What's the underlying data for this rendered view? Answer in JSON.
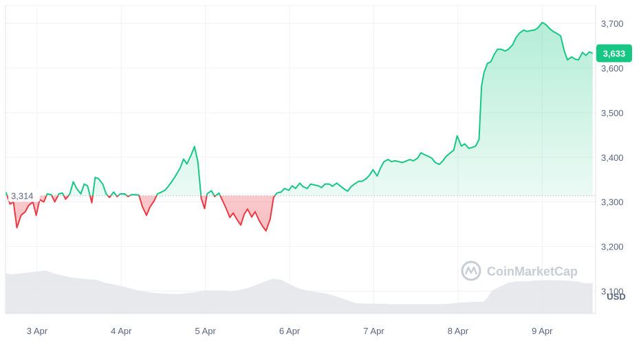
{
  "chart_data": {
    "type": "area",
    "currency_label": "USD",
    "watermark": "CoinMarketCap",
    "baseline": {
      "value": 3314,
      "label": "3,314"
    },
    "current": {
      "value": 3633,
      "label": "3,633"
    },
    "ylim": [
      3050,
      3740
    ],
    "yticks": [
      {
        "value": 3700,
        "label": "3,700"
      },
      {
        "value": 3600,
        "label": "3,600"
      },
      {
        "value": 3500,
        "label": "3,500"
      },
      {
        "value": 3400,
        "label": "3,400"
      },
      {
        "value": 3300,
        "label": "3,300"
      },
      {
        "value": 3200,
        "label": "3,200"
      },
      {
        "value": 3100,
        "label": "3,100"
      }
    ],
    "xlim": [
      2.625,
      9.635
    ],
    "xticks": [
      {
        "value": 3,
        "label": "3 Apr"
      },
      {
        "value": 4,
        "label": "4 Apr"
      },
      {
        "value": 5,
        "label": "5 Apr"
      },
      {
        "value": 6,
        "label": "6 Apr"
      },
      {
        "value": 7,
        "label": "7 Apr"
      },
      {
        "value": 8,
        "label": "8 Apr"
      },
      {
        "value": 9,
        "label": "9 Apr"
      }
    ],
    "x_unit": "day of April",
    "grid": true,
    "colors": {
      "up_line": "#16c784",
      "down_line": "#ea3943",
      "up_fill": "#16c784",
      "down_fill": "#ea3943",
      "volume": "#e3e5e9",
      "current_badge": "#16c784",
      "grid": "#eff2f5",
      "axis_text": "#58667e"
    },
    "series": [
      {
        "values": [
          [
            2.63,
            3322
          ],
          [
            2.68,
            3295
          ],
          [
            2.72,
            3300
          ],
          [
            2.76,
            3242
          ],
          [
            2.81,
            3270
          ],
          [
            2.86,
            3278
          ],
          [
            2.9,
            3292
          ],
          [
            2.95,
            3300
          ],
          [
            2.99,
            3270
          ],
          [
            3.03,
            3305
          ],
          [
            3.08,
            3300
          ],
          [
            3.12,
            3318
          ],
          [
            3.17,
            3316
          ],
          [
            3.21,
            3300
          ],
          [
            3.26,
            3318
          ],
          [
            3.3,
            3320
          ],
          [
            3.34,
            3306
          ],
          [
            3.39,
            3318
          ],
          [
            3.43,
            3345
          ],
          [
            3.47,
            3330
          ],
          [
            3.52,
            3318
          ],
          [
            3.56,
            3340
          ],
          [
            3.6,
            3336
          ],
          [
            3.65,
            3298
          ],
          [
            3.69,
            3355
          ],
          [
            3.73,
            3352
          ],
          [
            3.78,
            3340
          ],
          [
            3.82,
            3318
          ],
          [
            3.86,
            3310
          ],
          [
            3.91,
            3322
          ],
          [
            3.95,
            3312
          ],
          [
            3.99,
            3318
          ],
          [
            4.04,
            3318
          ],
          [
            4.08,
            3312
          ],
          [
            4.12,
            3316
          ],
          [
            4.17,
            3316
          ],
          [
            4.21,
            3315
          ],
          [
            4.25,
            3290
          ],
          [
            4.3,
            3270
          ],
          [
            4.34,
            3288
          ],
          [
            4.39,
            3302
          ],
          [
            4.43,
            3318
          ],
          [
            4.48,
            3322
          ],
          [
            4.52,
            3326
          ],
          [
            4.56,
            3335
          ],
          [
            4.61,
            3348
          ],
          [
            4.65,
            3360
          ],
          [
            4.7,
            3376
          ],
          [
            4.74,
            3396
          ],
          [
            4.78,
            3385
          ],
          [
            4.83,
            3405
          ],
          [
            4.87,
            3424
          ],
          [
            4.91,
            3390
          ],
          [
            4.95,
            3308
          ],
          [
            4.99,
            3285
          ],
          [
            5.02,
            3318
          ],
          [
            5.07,
            3325
          ],
          [
            5.11,
            3312
          ],
          [
            5.16,
            3320
          ],
          [
            5.2,
            3304
          ],
          [
            5.24,
            3288
          ],
          [
            5.29,
            3265
          ],
          [
            5.33,
            3275
          ],
          [
            5.37,
            3262
          ],
          [
            5.42,
            3248
          ],
          [
            5.46,
            3272
          ],
          [
            5.5,
            3284
          ],
          [
            5.55,
            3266
          ],
          [
            5.59,
            3278
          ],
          [
            5.64,
            3258
          ],
          [
            5.68,
            3245
          ],
          [
            5.72,
            3235
          ],
          [
            5.77,
            3262
          ],
          [
            5.81,
            3310
          ],
          [
            5.85,
            3320
          ],
          [
            5.9,
            3322
          ],
          [
            5.94,
            3330
          ],
          [
            5.99,
            3326
          ],
          [
            6.03,
            3336
          ],
          [
            6.07,
            3330
          ],
          [
            6.12,
            3342
          ],
          [
            6.16,
            3334
          ],
          [
            6.21,
            3330
          ],
          [
            6.25,
            3340
          ],
          [
            6.29,
            3338
          ],
          [
            6.34,
            3336
          ],
          [
            6.38,
            3332
          ],
          [
            6.42,
            3340
          ],
          [
            6.47,
            3340
          ],
          [
            6.51,
            3335
          ],
          [
            6.56,
            3342
          ],
          [
            6.6,
            3336
          ],
          [
            6.64,
            3330
          ],
          [
            6.69,
            3324
          ],
          [
            6.73,
            3334
          ],
          [
            6.77,
            3340
          ],
          [
            6.82,
            3346
          ],
          [
            6.86,
            3346
          ],
          [
            6.91,
            3352
          ],
          [
            6.95,
            3360
          ],
          [
            6.99,
            3372
          ],
          [
            7.04,
            3358
          ],
          [
            7.08,
            3376
          ],
          [
            7.12,
            3390
          ],
          [
            7.17,
            3395
          ],
          [
            7.21,
            3390
          ],
          [
            7.25,
            3392
          ],
          [
            7.3,
            3390
          ],
          [
            7.34,
            3388
          ],
          [
            7.39,
            3392
          ],
          [
            7.43,
            3395
          ],
          [
            7.47,
            3392
          ],
          [
            7.52,
            3398
          ],
          [
            7.56,
            3410
          ],
          [
            7.6,
            3406
          ],
          [
            7.65,
            3402
          ],
          [
            7.69,
            3398
          ],
          [
            7.73,
            3388
          ],
          [
            7.78,
            3384
          ],
          [
            7.82,
            3392
          ],
          [
            7.86,
            3402
          ],
          [
            7.91,
            3410
          ],
          [
            7.95,
            3416
          ],
          [
            7.99,
            3448
          ],
          [
            8.04,
            3425
          ],
          [
            8.08,
            3430
          ],
          [
            8.13,
            3420
          ],
          [
            8.17,
            3422
          ],
          [
            8.21,
            3425
          ],
          [
            8.25,
            3440
          ],
          [
            8.28,
            3560
          ],
          [
            8.31,
            3590
          ],
          [
            8.35,
            3610
          ],
          [
            8.39,
            3614
          ],
          [
            8.43,
            3630
          ],
          [
            8.47,
            3642
          ],
          [
            8.51,
            3642
          ],
          [
            8.56,
            3638
          ],
          [
            8.6,
            3642
          ],
          [
            8.65,
            3652
          ],
          [
            8.69,
            3668
          ],
          [
            8.73,
            3678
          ],
          [
            8.78,
            3685
          ],
          [
            8.82,
            3682
          ],
          [
            8.87,
            3684
          ],
          [
            8.91,
            3685
          ],
          [
            8.95,
            3690
          ],
          [
            9.0,
            3702
          ],
          [
            9.04,
            3698
          ],
          [
            9.09,
            3688
          ],
          [
            9.13,
            3682
          ],
          [
            9.17,
            3678
          ],
          [
            9.22,
            3672
          ],
          [
            9.26,
            3640
          ],
          [
            9.3,
            3618
          ],
          [
            9.35,
            3625
          ],
          [
            9.39,
            3620
          ],
          [
            9.43,
            3618
          ],
          [
            9.48,
            3635
          ],
          [
            9.52,
            3628
          ],
          [
            9.56,
            3636
          ],
          [
            9.6,
            3633
          ]
        ]
      }
    ],
    "volume_profile": [
      [
        2.63,
        0.82
      ],
      [
        2.7,
        0.8
      ],
      [
        2.8,
        0.82
      ],
      [
        2.9,
        0.84
      ],
      [
        3.0,
        0.86
      ],
      [
        3.1,
        0.88
      ],
      [
        3.2,
        0.82
      ],
      [
        3.3,
        0.78
      ],
      [
        3.4,
        0.74
      ],
      [
        3.5,
        0.72
      ],
      [
        3.6,
        0.7
      ],
      [
        3.7,
        0.69
      ],
      [
        3.8,
        0.63
      ],
      [
        3.9,
        0.6
      ],
      [
        4.0,
        0.56
      ],
      [
        4.1,
        0.52
      ],
      [
        4.2,
        0.47
      ],
      [
        4.3,
        0.44
      ],
      [
        4.4,
        0.42
      ],
      [
        4.5,
        0.41
      ],
      [
        4.6,
        0.4
      ],
      [
        4.7,
        0.4
      ],
      [
        4.8,
        0.42
      ],
      [
        4.9,
        0.44
      ],
      [
        5.0,
        0.47
      ],
      [
        5.1,
        0.47
      ],
      [
        5.2,
        0.47
      ],
      [
        5.3,
        0.45
      ],
      [
        5.4,
        0.48
      ],
      [
        5.5,
        0.52
      ],
      [
        5.6,
        0.58
      ],
      [
        5.7,
        0.65
      ],
      [
        5.8,
        0.71
      ],
      [
        5.9,
        0.69
      ],
      [
        6.0,
        0.6
      ],
      [
        6.1,
        0.52
      ],
      [
        6.2,
        0.47
      ],
      [
        6.3,
        0.44
      ],
      [
        6.4,
        0.42
      ],
      [
        6.5,
        0.38
      ],
      [
        6.6,
        0.32
      ],
      [
        6.7,
        0.26
      ],
      [
        6.8,
        0.21
      ],
      [
        6.9,
        0.2
      ],
      [
        7.0,
        0.2
      ],
      [
        7.1,
        0.2
      ],
      [
        7.2,
        0.19
      ],
      [
        7.3,
        0.19
      ],
      [
        7.4,
        0.19
      ],
      [
        7.5,
        0.19
      ],
      [
        7.6,
        0.19
      ],
      [
        7.7,
        0.19
      ],
      [
        7.8,
        0.19
      ],
      [
        7.9,
        0.2
      ],
      [
        8.0,
        0.22
      ],
      [
        8.1,
        0.23
      ],
      [
        8.2,
        0.24
      ],
      [
        8.3,
        0.24
      ],
      [
        8.35,
        0.32
      ],
      [
        8.4,
        0.46
      ],
      [
        8.5,
        0.55
      ],
      [
        8.6,
        0.63
      ],
      [
        8.7,
        0.66
      ],
      [
        8.8,
        0.66
      ],
      [
        8.9,
        0.67
      ],
      [
        9.0,
        0.68
      ],
      [
        9.1,
        0.68
      ],
      [
        9.2,
        0.68
      ],
      [
        9.3,
        0.67
      ],
      [
        9.4,
        0.66
      ],
      [
        9.5,
        0.62
      ],
      [
        9.6,
        0.62
      ]
    ]
  }
}
